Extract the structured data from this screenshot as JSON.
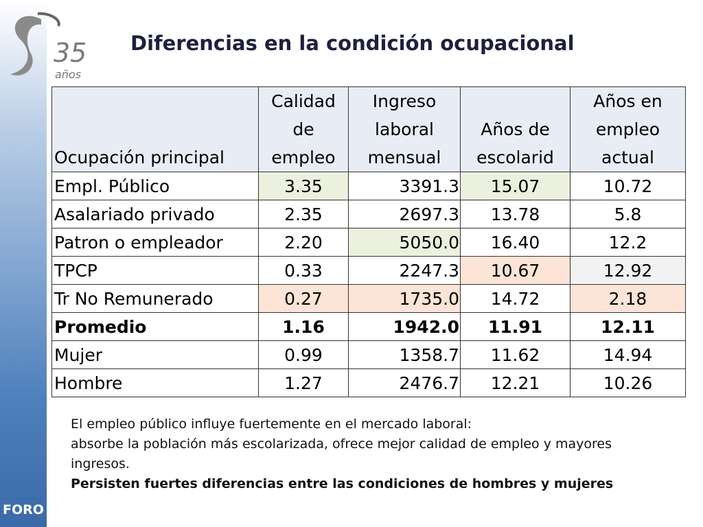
{
  "logo": {
    "number": "35",
    "word": "años"
  },
  "sidebar": {
    "label": "FORO"
  },
  "title": "Diferencias en la condición ocupacional",
  "table": {
    "header": [
      "Ocupación principal",
      "Calidad de empleo",
      "Ingreso laboral mensual",
      "Años de escolarid",
      "Años en empleo actual"
    ],
    "rows": [
      [
        "Empl. Público",
        "3.35",
        "3391.3",
        "15.07",
        "10.72"
      ],
      [
        "Asalariado privado",
        "2.35",
        "2697.3",
        "13.78",
        "5.8"
      ],
      [
        "Patron o empleador",
        "2.20",
        "5050.0",
        "16.40",
        "12.2"
      ],
      [
        "TPCP",
        "0.33",
        "2247.3",
        "10.67",
        "12.92"
      ],
      [
        "Tr No Remunerado",
        "0.27",
        "1735.0",
        "14.72",
        "2.18"
      ],
      [
        "Promedio",
        "1.16",
        "1942.0",
        "11.91",
        "12.11"
      ],
      [
        "Mujer",
        "0.99",
        "1358.7",
        "11.62",
        "14.94"
      ],
      [
        "Hombre",
        "1.27",
        "2476.7",
        "12.21",
        "10.26"
      ]
    ]
  },
  "notes": [
    "El empleo público influye fuertemente en el mercado laboral:",
    "absorbe la población más escolarizada, ofrece mejor calidad de empleo y mayores ingresos.",
    "Persisten fuertes diferencias entre las condiciones de hombres y mujeres"
  ]
}
